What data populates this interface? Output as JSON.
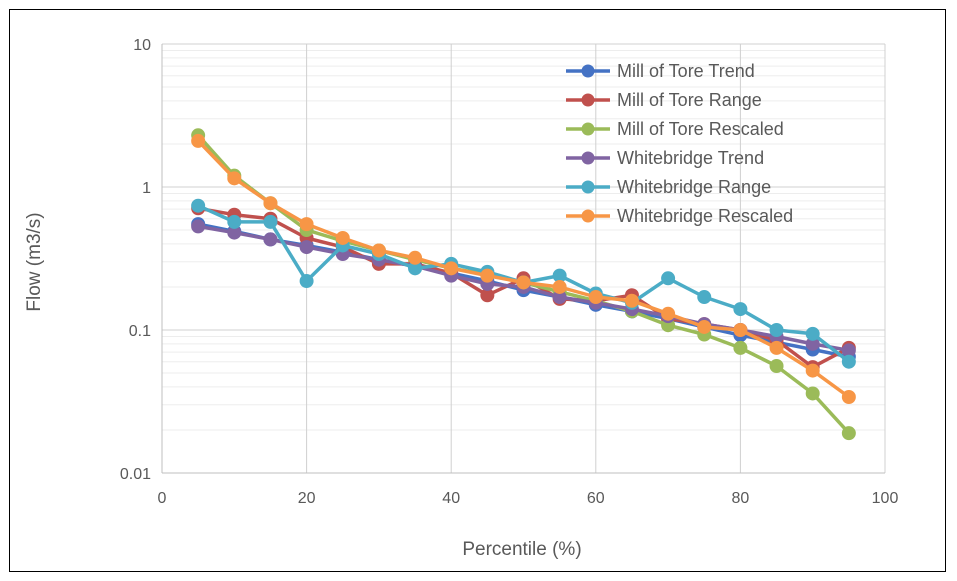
{
  "chart_data": {
    "type": "line",
    "title": "",
    "xlabel": "Percentile (%)",
    "ylabel": "Flow (m3/s)",
    "xlim": [
      0,
      100
    ],
    "ylim": [
      0.01,
      10
    ],
    "yscale": "log",
    "grid": true,
    "legend_position": "top-right",
    "x_ticks": [
      "0",
      "20",
      "40",
      "60",
      "80",
      "100"
    ],
    "y_ticks": [
      "0.01",
      "0.1",
      "1",
      "10"
    ],
    "x": [
      5,
      10,
      15,
      20,
      25,
      30,
      35,
      40,
      45,
      50,
      55,
      60,
      65,
      70,
      75,
      80,
      85,
      90,
      95
    ],
    "series": [
      {
        "name": "Mill of Tore Trend",
        "color": "#4472C4",
        "values": [
          0.55,
          0.49,
          0.43,
          0.39,
          0.35,
          0.31,
          0.28,
          0.25,
          0.22,
          0.19,
          0.17,
          0.15,
          0.135,
          0.12,
          0.105,
          0.092,
          0.082,
          0.073,
          0.065
        ]
      },
      {
        "name": "Mill of Tore Range",
        "color": "#C0504D",
        "values": [
          0.71,
          0.64,
          0.6,
          0.44,
          0.38,
          0.29,
          0.29,
          0.25,
          0.175,
          0.23,
          0.165,
          0.16,
          0.175,
          0.12,
          0.11,
          0.1,
          0.085,
          0.055,
          0.075
        ]
      },
      {
        "name": "Mill of Tore Rescaled",
        "color": "#9BBB59",
        "values": [
          2.3,
          1.2,
          0.77,
          0.5,
          0.42,
          0.36,
          0.31,
          0.27,
          0.245,
          0.215,
          0.185,
          0.16,
          0.135,
          0.108,
          0.093,
          0.075,
          0.056,
          0.036,
          0.019
        ]
      },
      {
        "name": "Whitebridge Trend",
        "color": "#8064A2",
        "values": [
          0.53,
          0.48,
          0.43,
          0.38,
          0.34,
          0.31,
          0.28,
          0.24,
          0.21,
          0.2,
          0.17,
          0.155,
          0.14,
          0.125,
          0.11,
          0.1,
          0.09,
          0.08,
          0.072
        ]
      },
      {
        "name": "Whitebridge Range",
        "color": "#4BACC6",
        "values": [
          0.74,
          0.57,
          0.57,
          0.22,
          0.39,
          0.34,
          0.27,
          0.29,
          0.255,
          0.215,
          0.24,
          0.18,
          0.155,
          0.23,
          0.17,
          0.14,
          0.1,
          0.094,
          0.06
        ]
      },
      {
        "name": "Whitebridge Rescaled",
        "color": "#F79646",
        "values": [
          2.1,
          1.15,
          0.77,
          0.55,
          0.44,
          0.36,
          0.32,
          0.27,
          0.24,
          0.215,
          0.2,
          0.17,
          0.16,
          0.13,
          0.105,
          0.1,
          0.075,
          0.052,
          0.034
        ]
      }
    ]
  }
}
